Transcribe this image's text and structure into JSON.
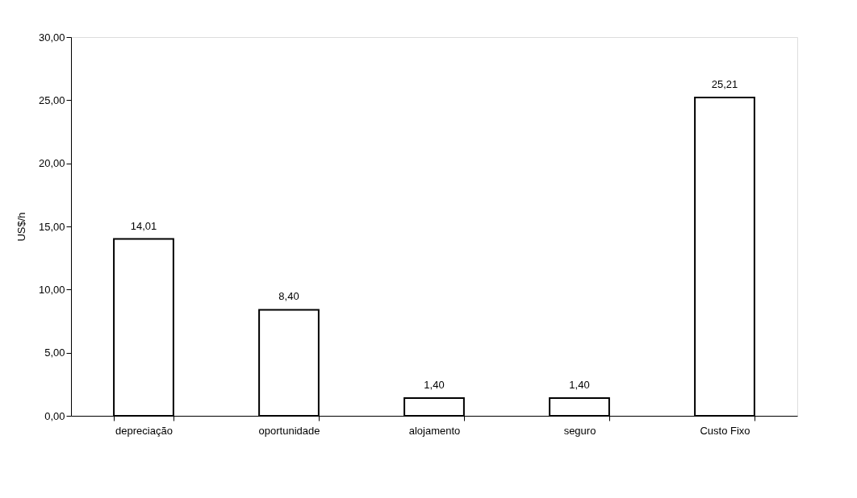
{
  "chart_data": {
    "type": "bar",
    "ylabel": "US$/h",
    "categories": [
      "depreciação",
      "oportunidade",
      "alojamento",
      "seguro",
      "Custo Fixo"
    ],
    "values": [
      14.01,
      8.4,
      1.4,
      1.4,
      25.21
    ],
    "value_labels": [
      "14,01",
      "8,40",
      "1,40",
      "1,40",
      "25,21"
    ],
    "color": "#ffffff",
    "ylim": [
      0,
      30
    ],
    "yticks": [
      {
        "value": 0,
        "label": "0,00"
      },
      {
        "value": 5,
        "label": "5,00"
      },
      {
        "value": 10,
        "label": "10,00"
      },
      {
        "value": 15,
        "label": "15,00"
      },
      {
        "value": 20,
        "label": "20,00"
      },
      {
        "value": 25,
        "label": "25,00"
      },
      {
        "value": 30,
        "label": "30,00"
      }
    ],
    "grid": false
  }
}
